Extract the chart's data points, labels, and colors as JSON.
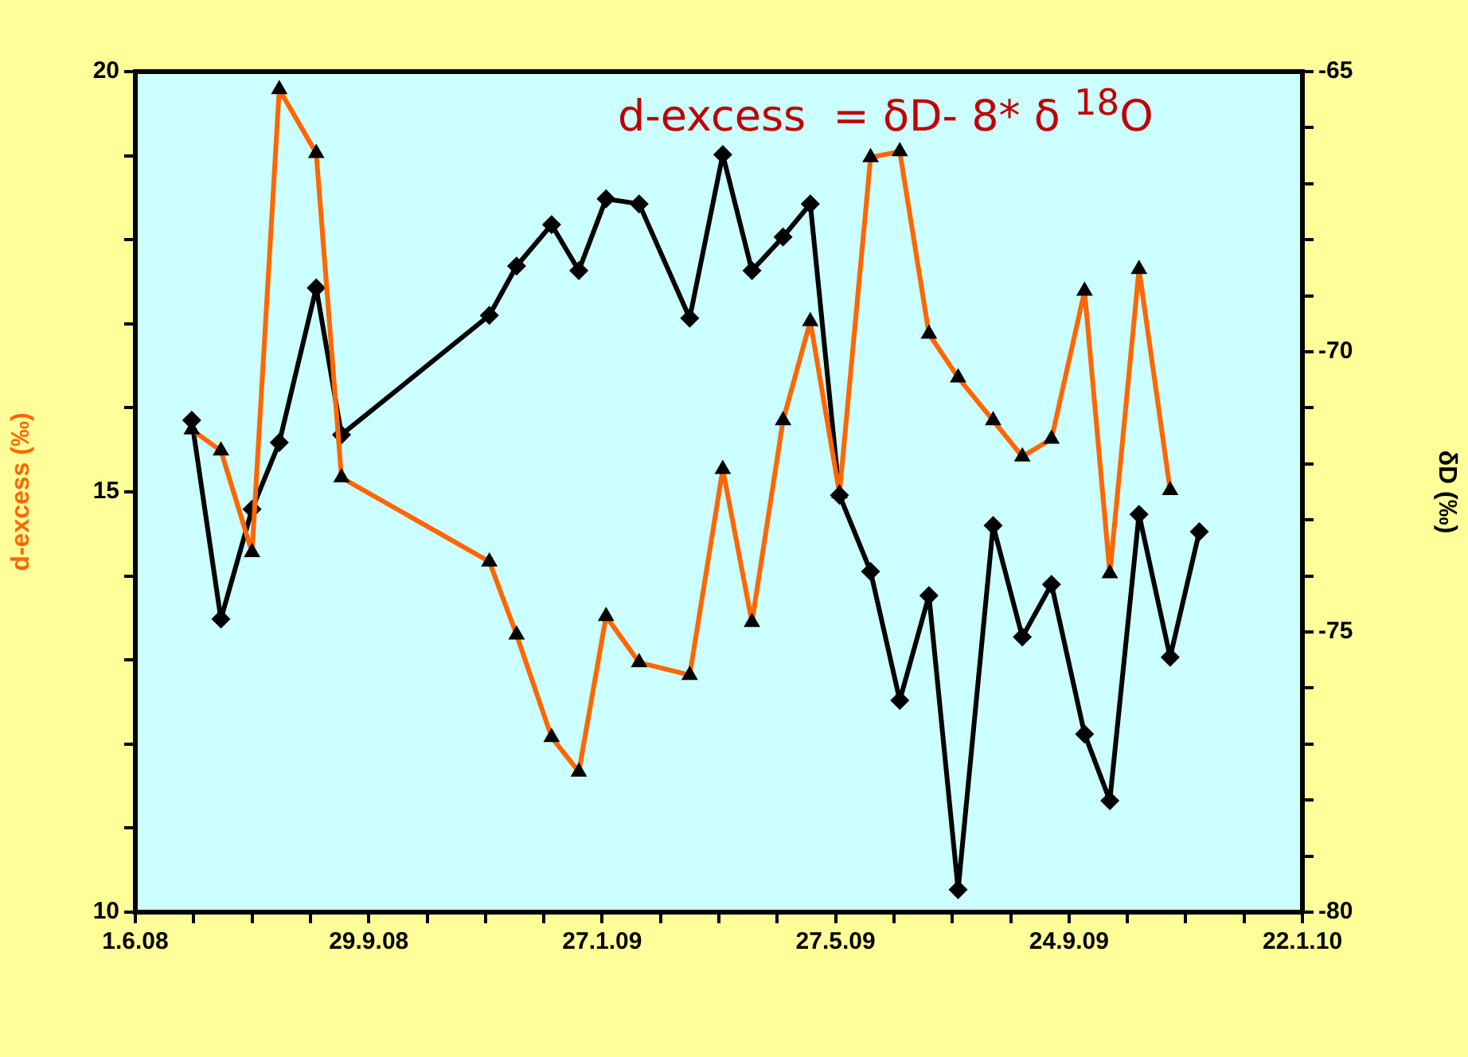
{
  "chart_data": {
    "type": "line",
    "ylabel": "d-excess (‰)",
    "y2label": "δD (‰)",
    "annotations": [
      "d-excess  = δD- 8* δ $^{18}$O"
    ],
    "xlim": [
      "2008-06-01",
      "2010-01-22"
    ],
    "xticks": [
      {
        "value": "2008-06-01",
        "label": "1.6.08"
      },
      {
        "value": "2008-07-01",
        "label": null
      },
      {
        "value": "2008-07-31",
        "label": null
      },
      {
        "value": "2008-08-30",
        "label": null
      },
      {
        "value": "2008-09-29",
        "label": "29.9.08"
      },
      {
        "value": "2008-10-29",
        "label": null
      },
      {
        "value": "2008-11-28",
        "label": null
      },
      {
        "value": "2008-12-28",
        "label": null
      },
      {
        "value": "2009-01-27",
        "label": "27.1.09"
      },
      {
        "value": "2009-02-26",
        "label": null
      },
      {
        "value": "2009-03-28",
        "label": null
      },
      {
        "value": "2009-04-27",
        "label": null
      },
      {
        "value": "2009-05-27",
        "label": "27.5.09"
      },
      {
        "value": "2009-06-26",
        "label": null
      },
      {
        "value": "2009-07-26",
        "label": null
      },
      {
        "value": "2009-08-25",
        "label": null
      },
      {
        "value": "2009-09-24",
        "label": "24.9.09"
      },
      {
        "value": "2009-10-24",
        "label": null
      },
      {
        "value": "2009-11-23",
        "label": null
      },
      {
        "value": "2009-12-23",
        "label": null
      },
      {
        "value": "2010-01-22",
        "label": "22.1.10"
      }
    ],
    "ylim": [
      10,
      20
    ],
    "yticks": [
      10,
      {
        "value": 11,
        "label": null
      },
      {
        "value": 12,
        "label": null
      },
      {
        "value": 13,
        "label": null
      },
      {
        "value": 14,
        "label": null
      },
      15,
      {
        "value": 16,
        "label": null
      },
      {
        "value": 17,
        "label": null
      },
      {
        "value": 18,
        "label": null
      },
      {
        "value": 19,
        "label": null
      },
      20
    ],
    "y2lim": [
      -80,
      -65
    ],
    "y2ticks": [
      -80,
      {
        "value": -79,
        "label": null
      },
      {
        "value": -78,
        "label": null
      },
      {
        "value": -77,
        "label": null
      },
      {
        "value": -76,
        "label": null
      },
      -75,
      {
        "value": -74,
        "label": null
      },
      {
        "value": -73,
        "label": null
      },
      {
        "value": -72,
        "label": null
      },
      {
        "value": -71,
        "label": null
      },
      -70,
      {
        "value": -69,
        "label": null
      },
      {
        "value": -68,
        "label": null
      },
      {
        "value": -67,
        "label": null
      },
      {
        "value": -66,
        "label": null
      },
      -65
    ],
    "grid": false,
    "legend": false,
    "line_style": "solid",
    "series": [
      {
        "color": "#ff6600",
        "marker": "triangle",
        "x": [
          "2008-06-30",
          "2008-07-15",
          "2008-07-31",
          "2008-08-14",
          "2008-09-02",
          "2008-09-15",
          "2008-11-30",
          "2008-12-14",
          "2009-01-01",
          "2009-01-15",
          "2009-01-29",
          "2009-02-15",
          "2009-03-13",
          "2009-03-30",
          "2009-04-14",
          "2009-04-30",
          "2009-05-14",
          "2009-05-29",
          "2009-06-14",
          "2009-06-29",
          "2009-07-14",
          "2009-07-29",
          "2009-08-16",
          "2009-08-31",
          "2009-09-15",
          "2009-10-02",
          "2009-10-15",
          "2009-10-30",
          "2009-11-15"
        ],
        "values": [
          15.74,
          15.49,
          14.28,
          19.79,
          19.03,
          15.17,
          14.17,
          13.3,
          12.08,
          11.67,
          13.52,
          12.97,
          12.82,
          15.27,
          13.45,
          15.85,
          17.03,
          14.98,
          18.98,
          19.05,
          16.88,
          16.36,
          15.85,
          15.42,
          15.63,
          17.39,
          14.03,
          17.65,
          15.02
        ]
      },
      {
        "color": "#000000",
        "marker": "diamond",
        "axis": "y2",
        "x": [
          "2008-06-30",
          "2008-07-15",
          "2008-07-31",
          "2008-08-14",
          "2008-09-02",
          "2008-09-15",
          "2008-11-30",
          "2008-12-14",
          "2009-01-01",
          "2009-01-15",
          "2009-01-29",
          "2009-02-15",
          "2009-03-13",
          "2009-03-30",
          "2009-04-14",
          "2009-04-30",
          "2009-05-14",
          "2009-05-29",
          "2009-06-14",
          "2009-06-29",
          "2009-07-14",
          "2009-07-29",
          "2009-08-16",
          "2009-08-31",
          "2009-09-15",
          "2009-10-02",
          "2009-10-15",
          "2009-10-30",
          "2009-11-15",
          "2009-11-30"
        ],
        "values": [
          -71.22,
          -74.77,
          -72.81,
          -71.62,
          -68.86,
          -71.48,
          -69.35,
          -68.47,
          -67.73,
          -68.55,
          -67.27,
          -67.36,
          -69.4,
          -66.48,
          -68.55,
          -67.95,
          -67.36,
          -72.56,
          -73.92,
          -76.22,
          -74.35,
          -79.6,
          -73.1,
          -75.09,
          -74.15,
          -76.82,
          -78.01,
          -72.9,
          -75.45,
          -73.21
        ]
      }
    ]
  }
}
